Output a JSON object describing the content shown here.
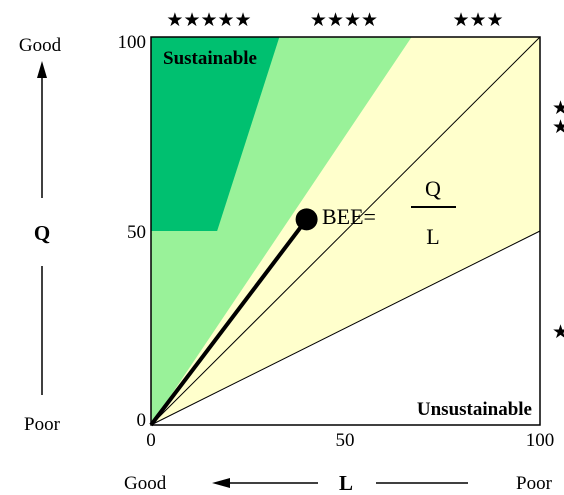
{
  "rating_stars_top": [
    "★★★★★",
    "★★★★",
    "★★★"
  ],
  "rating_stars_right": [
    "★",
    "★",
    "★"
  ],
  "q_axis": {
    "label": "Q",
    "good_label": "Good",
    "poor_label": "Poor",
    "ticks": [
      "100",
      "50",
      "0"
    ]
  },
  "l_axis": {
    "label": "L",
    "good_label": "Good",
    "poor_label": "Poor",
    "ticks": [
      "0",
      "50",
      "100"
    ]
  },
  "regions": {
    "sustainable_label": "Sustainable",
    "unsustainable_label": "Unsustainable"
  },
  "formula": {
    "prefix": "BEE=",
    "numerator": "Q",
    "denominator": "L"
  },
  "colors": {
    "rank_s": "#00c070",
    "rank_a": "#99f299",
    "rank_b": "#ffffcc",
    "rank_c": "#ffffff",
    "line": "#000000"
  },
  "chart_data": {
    "type": "area",
    "xlim": [
      0,
      100
    ],
    "ylim": [
      0,
      100
    ],
    "point": {
      "L": 40,
      "Q": 53
    },
    "boundaries": [
      {
        "L": [
          0,
          17,
          33
        ],
        "Q": [
          50,
          50,
          100
        ]
      },
      {
        "L": [
          0,
          67
        ],
        "Q": [
          0,
          100
        ]
      },
      {
        "L": [
          0,
          100
        ],
        "Q": [
          0,
          100
        ]
      },
      {
        "L": [
          0,
          100
        ],
        "Q": [
          0,
          50
        ]
      }
    ]
  }
}
